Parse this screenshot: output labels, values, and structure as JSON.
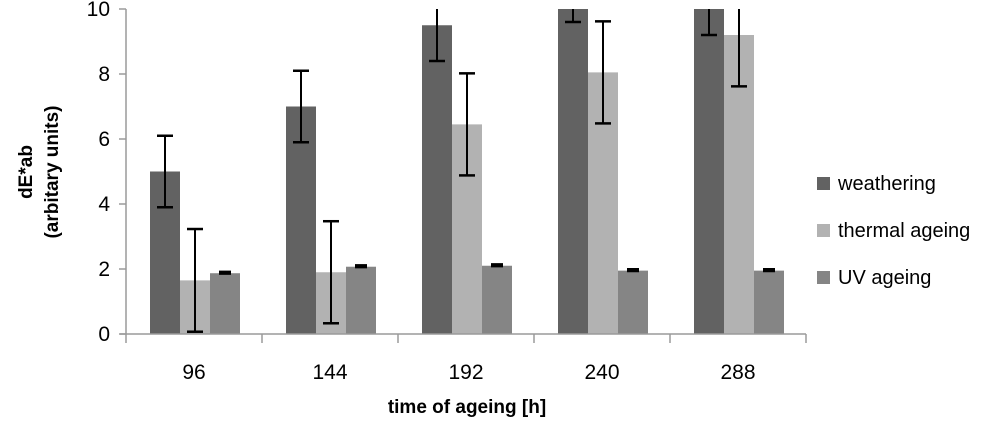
{
  "chart_data": {
    "type": "bar",
    "title": "",
    "xlabel": "time of ageing [h]",
    "ylabel_lines": [
      "dE*ab",
      "(arbitary units)"
    ],
    "categories": [
      "96",
      "144",
      "192",
      "240",
      "288"
    ],
    "ylim": [
      0,
      10
    ],
    "yticks": [
      "0",
      "2",
      "4",
      "6",
      "8",
      "10"
    ],
    "grid": false,
    "legend_position": "right",
    "series": [
      {
        "name": "weathering",
        "color": "#626262",
        "values": [
          5.0,
          7.0,
          9.5,
          10.8,
          10.4
        ],
        "errors": [
          1.1,
          1.1,
          1.1,
          1.2,
          1.2
        ]
      },
      {
        "name": "thermal ageing",
        "color": "#b2b2b2",
        "values": [
          1.65,
          1.9,
          6.45,
          8.05,
          9.2
        ],
        "errors": [
          1.58,
          1.57,
          1.57,
          1.57,
          1.58
        ]
      },
      {
        "name": "UV ageing",
        "color": "#858585",
        "values": [
          1.87,
          2.07,
          2.1,
          1.95,
          1.95
        ],
        "errors": [
          0.05,
          0.05,
          0.05,
          0.05,
          0.05
        ]
      }
    ]
  }
}
